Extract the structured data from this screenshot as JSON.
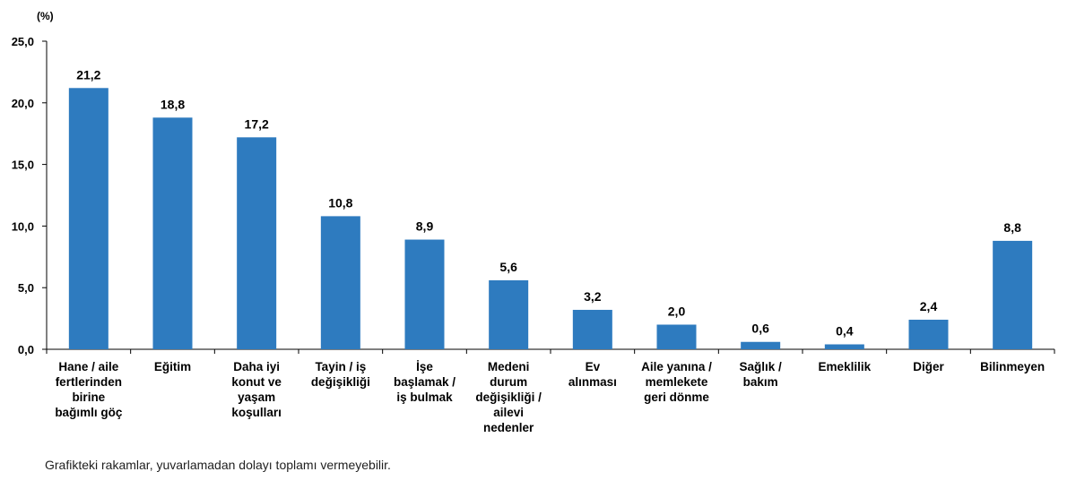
{
  "chart_data": {
    "type": "bar",
    "unit": "(%)",
    "categories": [
      [
        "Hane / aile",
        "fertlerinden",
        "birine",
        "bağımlı göç"
      ],
      [
        "Eğitim"
      ],
      [
        "Daha iyi",
        "konut ve",
        "yaşam",
        "koşulları"
      ],
      [
        "Tayin / iş",
        "değişikliği"
      ],
      [
        "İşe",
        "başlamak /",
        "iş bulmak"
      ],
      [
        "Medeni",
        "durum",
        "değişikliği /",
        "ailevi",
        "nedenler"
      ],
      [
        "Ev",
        "alınması"
      ],
      [
        "Aile yanına /",
        "memlekete",
        "geri dönme"
      ],
      [
        "Sağlık /",
        "bakım"
      ],
      [
        "Emeklilik"
      ],
      [
        "Diğer"
      ],
      [
        "Bilinmeyen"
      ]
    ],
    "values": [
      21.2,
      18.8,
      17.2,
      10.8,
      8.9,
      5.6,
      3.2,
      2.0,
      0.6,
      0.4,
      2.4,
      8.8
    ],
    "value_labels": [
      "21,2",
      "18,8",
      "17,2",
      "10,8",
      "8,9",
      "5,6",
      "3,2",
      "2,0",
      "0,6",
      "0,4",
      "2,4",
      "8,8"
    ],
    "ylim": [
      0,
      25
    ],
    "yticks": [
      "0,0",
      "5,0",
      "10,0",
      "15,0",
      "20,0",
      "25,0"
    ],
    "bar_color": "#2e7bbf",
    "grid": false,
    "legend": "none"
  },
  "footnote": "Grafikteki rakamlar, yuvarlamadan dolayı toplamı vermeyebilir."
}
